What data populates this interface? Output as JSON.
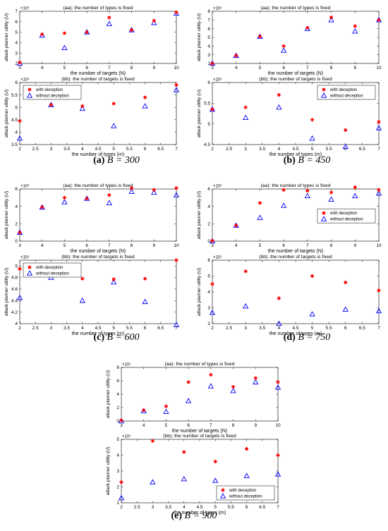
{
  "legend": {
    "with_label": "with deception",
    "without_label": "without deception",
    "with_color": "#ff0000",
    "without_color": "#0000ff"
  },
  "captions": [
    {
      "label": "(a)",
      "text": "B = 300"
    },
    {
      "label": "(b)",
      "text": "B = 450"
    },
    {
      "label": "(c)",
      "text": "B = 600"
    },
    {
      "label": "(d)",
      "text": "B = 750"
    },
    {
      "label": "(e)",
      "text": "B = 900"
    }
  ],
  "chart_data": [
    {
      "type": "scatter",
      "panel": "a-top",
      "title": "(aa): the number of types is fixed",
      "xlabel": "the number of targets (N)",
      "ylabel": "attack planner utility (U)",
      "exponent": "×10⁴",
      "xlim": [
        3,
        10
      ],
      "ylim": [
        2,
        7
      ],
      "xticks": [
        3,
        4,
        5,
        6,
        7,
        8,
        9,
        10
      ],
      "yticks": [
        2,
        3,
        4,
        5,
        6,
        7
      ],
      "legend": "none",
      "x": [
        3,
        4,
        5,
        6,
        7,
        8,
        9,
        10
      ],
      "series": [
        {
          "name": "with deception",
          "values": [
            2.1,
            4.8,
            4.9,
            5.0,
            6.4,
            5.2,
            6.1,
            6.9
          ]
        },
        {
          "name": "without deception",
          "values": [
            2.0,
            4.7,
            3.5,
            5.0,
            5.8,
            5.2,
            5.9,
            6.8
          ]
        }
      ]
    },
    {
      "type": "scatter",
      "panel": "a-bottom",
      "title": "(bb): the number of targets is fixed",
      "xlabel": "the number of types (m)",
      "ylabel": "attack planner utility (U)",
      "exponent": "×10⁴",
      "xlim": [
        2,
        7
      ],
      "ylim": [
        3.5,
        6
      ],
      "xticks": [
        2,
        2.5,
        3,
        3.5,
        4,
        4.5,
        5,
        5.5,
        6,
        6.5,
        7
      ],
      "yticks": [
        3.5,
        4,
        4.5,
        5,
        5.5,
        6
      ],
      "legend": "top-left",
      "x": [
        2,
        3,
        4,
        5,
        6,
        7
      ],
      "series": [
        {
          "name": "with deception",
          "values": [
            4.45,
            5.1,
            5.05,
            5.15,
            5.4,
            5.9
          ]
        },
        {
          "name": "without deception",
          "values": [
            3.75,
            5.1,
            4.95,
            4.25,
            5.05,
            5.7
          ]
        }
      ]
    },
    {
      "type": "scatter",
      "panel": "b-top",
      "title": "(aa): the number of types is fixed",
      "xlabel": "the number of targets (N)",
      "ylabel": "attack planner utility (U)",
      "exponent": "×10⁴",
      "xlim": [
        3,
        10
      ],
      "ylim": [
        2,
        8
      ],
      "xticks": [
        3,
        4,
        5,
        6,
        7,
        8,
        9,
        10
      ],
      "yticks": [
        2,
        3,
        4,
        5,
        6,
        7,
        8
      ],
      "legend": "none",
      "x": [
        3,
        4,
        5,
        6,
        7,
        8,
        9,
        10
      ],
      "series": [
        {
          "name": "with deception",
          "values": [
            2.0,
            2.9,
            5.1,
            4.0,
            6.1,
            7.3,
            6.3,
            7.0
          ]
        },
        {
          "name": "without deception",
          "values": [
            2.0,
            2.9,
            5.1,
            3.5,
            6.0,
            7.0,
            5.7,
            7.0
          ]
        }
      ]
    },
    {
      "type": "scatter",
      "panel": "b-bottom",
      "title": "(bb): the number of targets is fixed",
      "xlabel": "the number of types (m)",
      "ylabel": "attack planner utility (U)",
      "exponent": "×10⁴",
      "xlim": [
        2,
        7
      ],
      "ylim": [
        4.5,
        6
      ],
      "xticks": [
        2,
        2.5,
        3,
        3.5,
        4,
        4.5,
        5,
        5.5,
        6,
        6.5,
        7
      ],
      "yticks": [
        4.5,
        5,
        5.5,
        6
      ],
      "legend": "top-right",
      "x": [
        2,
        3,
        4,
        5,
        6,
        7
      ],
      "series": [
        {
          "name": "with deception",
          "values": [
            5.35,
            5.4,
            5.7,
            5.1,
            4.85,
            5.05
          ]
        },
        {
          "name": "without deception",
          "values": [
            5.35,
            5.15,
            5.4,
            4.65,
            4.45,
            4.9
          ]
        }
      ]
    },
    {
      "type": "scatter",
      "panel": "c-top",
      "title": "(aa): the number of types is fixed",
      "xlabel": "the number of targets (N)",
      "ylabel": "attack planner utility (U)",
      "exponent": "×10⁴",
      "xlim": [
        3,
        10
      ],
      "ylim": [
        0,
        6
      ],
      "xticks": [
        3,
        4,
        5,
        6,
        7,
        8,
        9,
        10
      ],
      "yticks": [
        0,
        2,
        4,
        6
      ],
      "legend": "none",
      "x": [
        3,
        4,
        5,
        6,
        7,
        8,
        9,
        10
      ],
      "series": [
        {
          "name": "with deception",
          "values": [
            1.0,
            3.9,
            5.0,
            4.9,
            5.3,
            6.1,
            5.9,
            6.1
          ]
        },
        {
          "name": "without deception",
          "values": [
            1.0,
            3.9,
            4.5,
            4.9,
            4.4,
            5.7,
            5.6,
            5.3
          ]
        }
      ]
    },
    {
      "type": "scatter",
      "panel": "c-bottom",
      "title": "(bb): the number of targets is fixed",
      "xlabel": "the number of types (m)",
      "ylabel": "attack planner utility (U)",
      "exponent": "×10⁴",
      "xlim": [
        2,
        7
      ],
      "ylim": [
        4,
        5.1
      ],
      "xticks": [
        2,
        2.5,
        3,
        3.5,
        4,
        4.5,
        5,
        5.5,
        6,
        6.5,
        7
      ],
      "yticks": [
        4,
        4.2,
        4.4,
        4.6,
        4.8,
        5
      ],
      "legend": "top-left",
      "x": [
        2,
        3,
        4,
        5,
        6,
        7
      ],
      "series": [
        {
          "name": "with deception",
          "values": [
            4.95,
            4.85,
            4.78,
            4.77,
            4.78,
            5.1
          ]
        },
        {
          "name": "without deception",
          "values": [
            4.45,
            4.8,
            4.4,
            4.72,
            4.38,
            3.98
          ]
        }
      ]
    },
    {
      "type": "scatter",
      "panel": "d-top",
      "title": "(aa): the number of types is fixed",
      "xlabel": "the number of targets (N)",
      "ylabel": "attack planner utility (U)",
      "exponent": "×10⁴",
      "xlim": [
        3,
        10
      ],
      "ylim": [
        0,
        6
      ],
      "xticks": [
        3,
        4,
        5,
        6,
        7,
        8,
        9,
        10
      ],
      "yticks": [
        0,
        2,
        4,
        6
      ],
      "legend": "middle-right",
      "x": [
        3,
        4,
        5,
        6,
        7,
        8,
        9,
        10
      ],
      "series": [
        {
          "name": "with deception",
          "values": [
            0.05,
            1.8,
            4.4,
            5.9,
            5.8,
            5.6,
            6.2,
            5.9
          ]
        },
        {
          "name": "without deception",
          "values": [
            0.0,
            1.8,
            2.7,
            4.1,
            5.2,
            4.8,
            5.2,
            5.5
          ]
        }
      ]
    },
    {
      "type": "scatter",
      "panel": "d-bottom",
      "title": "(bb): the number of targets is fixed",
      "xlabel": "the number of types (m)",
      "ylabel": "attack planner utility (U)",
      "exponent": "×10⁴",
      "xlim": [
        2,
        7
      ],
      "ylim": [
        2,
        6
      ],
      "xticks": [
        2,
        2.5,
        3,
        3.5,
        4,
        4.5,
        5,
        5.5,
        6,
        6.5,
        7
      ],
      "yticks": [
        2,
        3,
        4,
        5,
        6
      ],
      "legend": "none",
      "x": [
        2,
        3,
        4,
        5,
        6,
        7
      ],
      "series": [
        {
          "name": "with deception",
          "values": [
            4.5,
            5.3,
            3.6,
            5.0,
            4.6,
            4.1
          ]
        },
        {
          "name": "without deception",
          "values": [
            2.7,
            3.1,
            2.0,
            2.6,
            2.9,
            2.8
          ]
        }
      ]
    },
    {
      "type": "scatter",
      "panel": "e-top",
      "title": "(aa): the number of types is fixed",
      "xlabel": "the number of targets (N)",
      "ylabel": "attack planner utility (U)",
      "exponent": "×10⁴",
      "xlim": [
        3,
        10
      ],
      "ylim": [
        0,
        8
      ],
      "xticks": [
        3,
        4,
        5,
        6,
        7,
        8,
        9,
        10
      ],
      "yticks": [
        0,
        2,
        4,
        6,
        8
      ],
      "legend": "none",
      "x": [
        3,
        4,
        5,
        6,
        7,
        8,
        9,
        10
      ],
      "series": [
        {
          "name": "with deception",
          "values": [
            0.1,
            1.6,
            2.2,
            5.8,
            6.9,
            5.1,
            6.4,
            5.8
          ]
        },
        {
          "name": "without deception",
          "values": [
            0.0,
            1.5,
            1.4,
            3.0,
            5.2,
            4.5,
            5.8,
            5.0
          ]
        }
      ]
    },
    {
      "type": "scatter",
      "panel": "e-bottom",
      "title": "(bb): the number of targets is fixed",
      "xlabel": "the number of types (m)",
      "ylabel": "attack planner utility (U)",
      "exponent": "×10⁴",
      "xlim": [
        2,
        7
      ],
      "ylim": [
        1,
        5
      ],
      "xticks": [
        2,
        2.5,
        3,
        3.5,
        4,
        4.5,
        5,
        5.5,
        6,
        6.5,
        7
      ],
      "yticks": [
        1,
        2,
        3,
        4,
        5
      ],
      "legend": "bottom-right",
      "x": [
        2,
        3,
        4,
        5,
        6,
        7
      ],
      "series": [
        {
          "name": "with deception",
          "values": [
            2.3,
            4.9,
            4.2,
            3.6,
            4.4,
            4.0
          ]
        },
        {
          "name": "without deception",
          "values": [
            1.3,
            2.3,
            2.5,
            2.4,
            2.7,
            2.8
          ]
        }
      ]
    }
  ]
}
